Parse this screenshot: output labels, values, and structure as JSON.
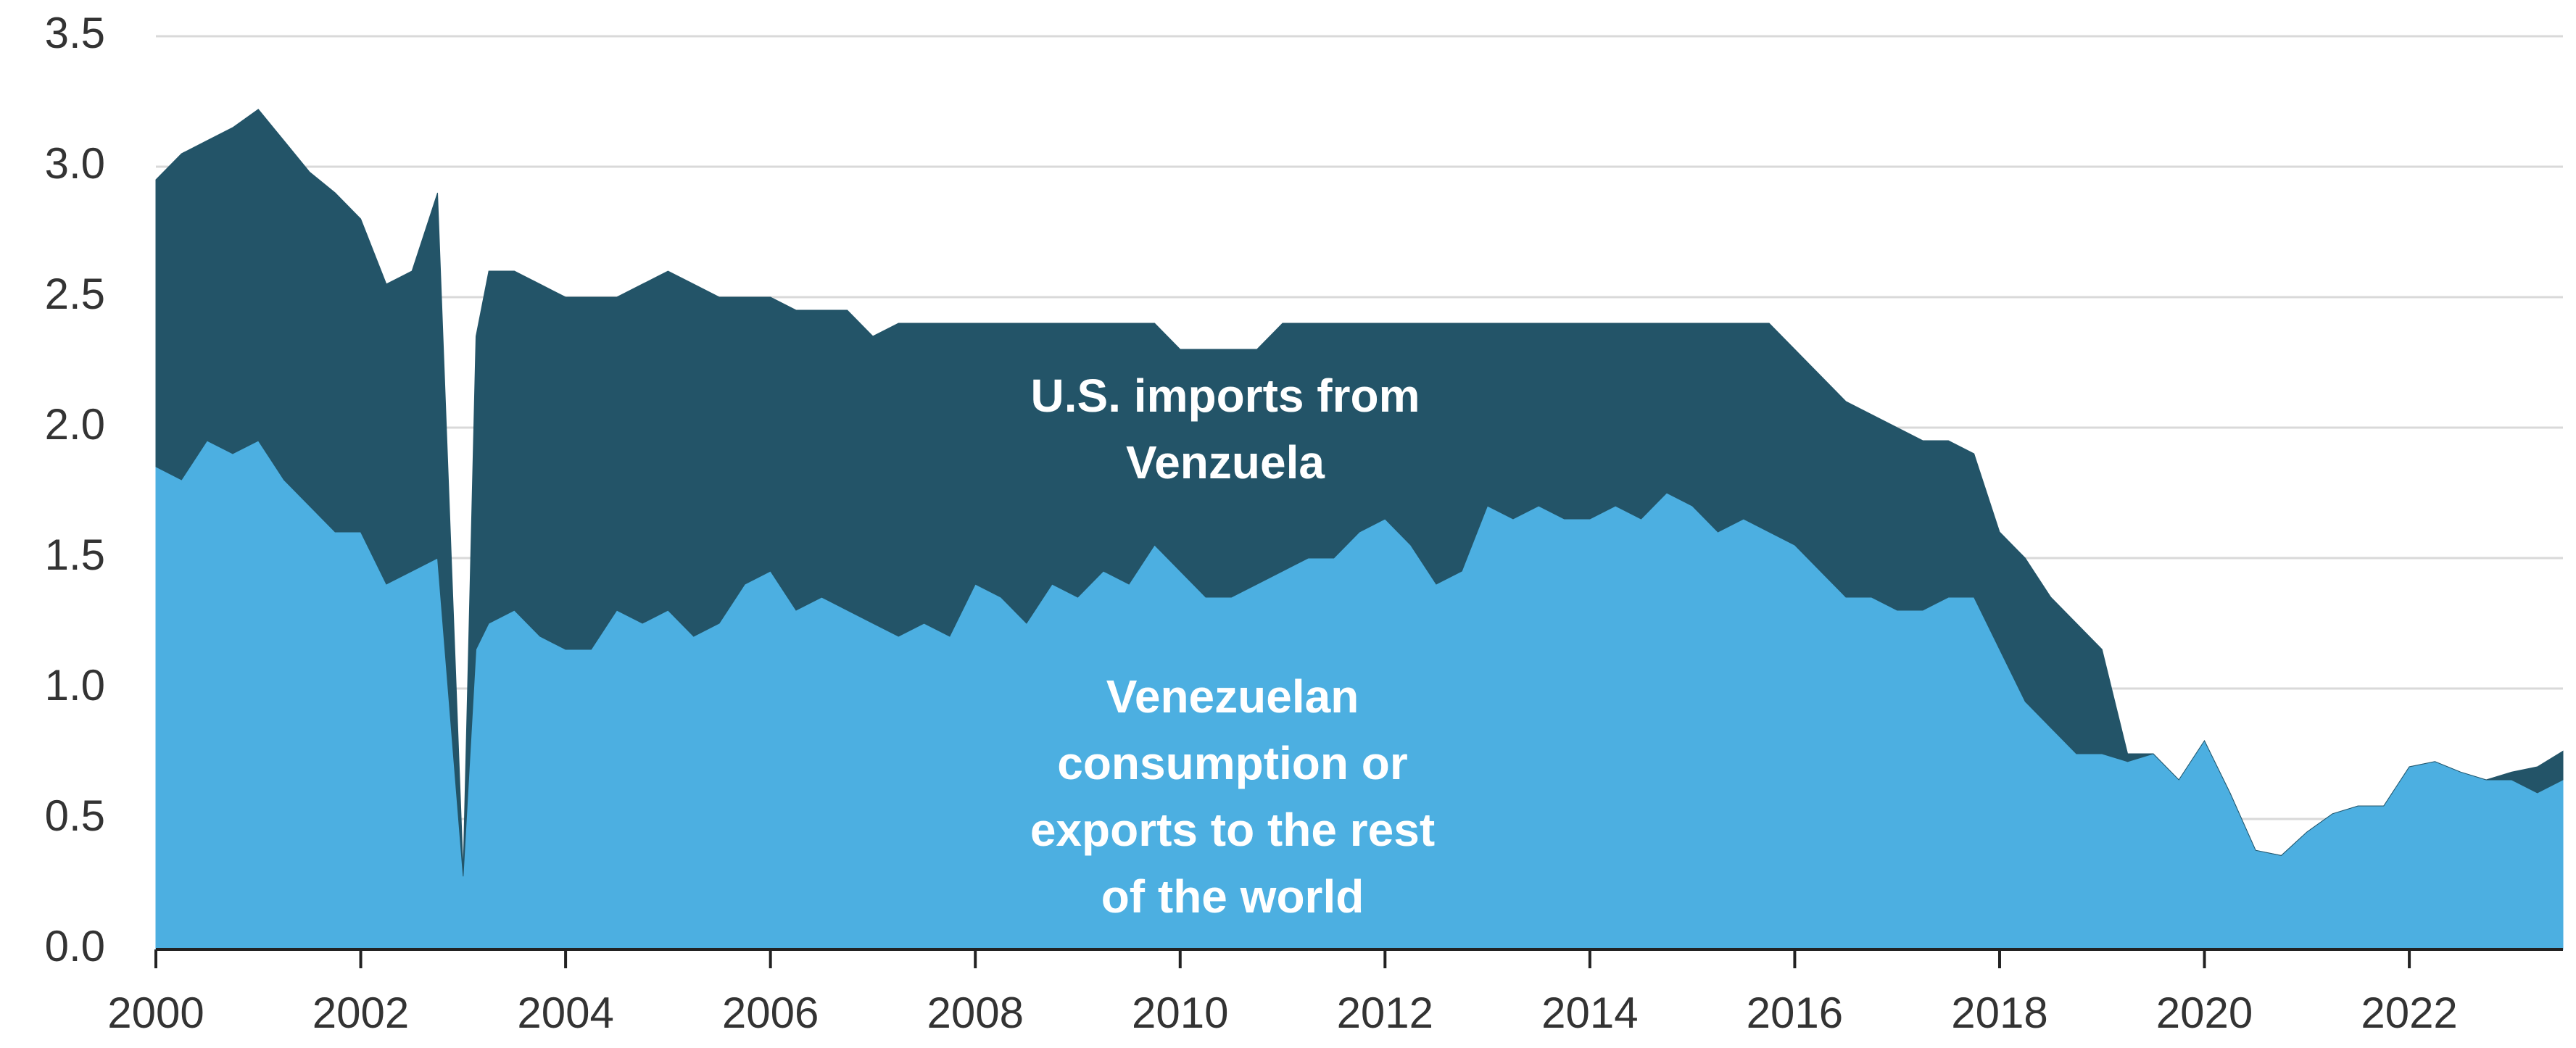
{
  "chart_data": {
    "type": "stacked_area",
    "x": [
      2000,
      2000.25,
      2000.5,
      2000.75,
      2001,
      2001.25,
      2001.5,
      2001.75,
      2002,
      2002.25,
      2002.5,
      2002.75,
      2003,
      2003.125,
      2003.25,
      2003.5,
      2003.75,
      2004,
      2004.25,
      2004.5,
      2004.75,
      2005,
      2005.25,
      2005.5,
      2005.75,
      2006,
      2006.25,
      2006.5,
      2006.75,
      2007,
      2007.25,
      2007.5,
      2007.75,
      2008,
      2008.25,
      2008.5,
      2008.75,
      2009,
      2009.25,
      2009.5,
      2009.75,
      2010,
      2010.25,
      2010.5,
      2010.75,
      2011,
      2011.25,
      2011.5,
      2011.75,
      2012,
      2012.25,
      2012.5,
      2012.75,
      2013,
      2013.25,
      2013.5,
      2013.75,
      2014,
      2014.25,
      2014.5,
      2014.75,
      2015,
      2015.25,
      2015.5,
      2015.75,
      2016,
      2016.25,
      2016.5,
      2016.75,
      2017,
      2017.25,
      2017.5,
      2017.75,
      2018,
      2018.25,
      2018.5,
      2018.75,
      2019,
      2019.25,
      2019.5,
      2019.75,
      2020,
      2020.25,
      2020.5,
      2020.75,
      2021,
      2021.25,
      2021.5,
      2021.75,
      2022,
      2022.25,
      2022.5,
      2022.75,
      2023,
      2023.25,
      2023.5
    ],
    "series": [
      {
        "name": "Venezuelan consumption or exports to the rest of the world",
        "color": "#4cafe1",
        "values": [
          1.85,
          1.8,
          1.95,
          1.9,
          1.95,
          1.8,
          1.7,
          1.6,
          1.6,
          1.4,
          1.45,
          1.5,
          0.28,
          1.15,
          1.25,
          1.3,
          1.2,
          1.15,
          1.15,
          1.3,
          1.25,
          1.3,
          1.2,
          1.25,
          1.4,
          1.45,
          1.3,
          1.35,
          1.3,
          1.25,
          1.2,
          1.25,
          1.2,
          1.4,
          1.35,
          1.25,
          1.4,
          1.35,
          1.45,
          1.4,
          1.55,
          1.45,
          1.35,
          1.35,
          1.4,
          1.45,
          1.5,
          1.5,
          1.6,
          1.65,
          1.55,
          1.4,
          1.45,
          1.7,
          1.65,
          1.7,
          1.65,
          1.65,
          1.7,
          1.65,
          1.75,
          1.7,
          1.6,
          1.65,
          1.6,
          1.55,
          1.45,
          1.35,
          1.35,
          1.3,
          1.3,
          1.35,
          1.35,
          1.15,
          0.95,
          0.85,
          0.75,
          0.75,
          0.72,
          0.75,
          0.65,
          0.8,
          0.6,
          0.38,
          0.36,
          0.45,
          0.52,
          0.55,
          0.55,
          0.7,
          0.72,
          0.68,
          0.65,
          0.65,
          0.6,
          0.65
        ]
      },
      {
        "name": "U.S. imports from Venzuela",
        "color": "#235468",
        "values": [
          1.1,
          1.25,
          1.15,
          1.25,
          1.27,
          1.3,
          1.28,
          1.3,
          1.2,
          1.15,
          1.15,
          1.4,
          0.02,
          1.2,
          1.35,
          1.3,
          1.35,
          1.35,
          1.35,
          1.2,
          1.3,
          1.3,
          1.35,
          1.25,
          1.1,
          1.05,
          1.15,
          1.1,
          1.15,
          1.1,
          1.2,
          1.15,
          1.2,
          1.0,
          1.05,
          1.15,
          1.0,
          1.05,
          0.95,
          1.0,
          0.85,
          0.85,
          0.95,
          0.95,
          0.9,
          0.95,
          0.9,
          0.9,
          0.8,
          0.75,
          0.85,
          1.0,
          0.95,
          0.7,
          0.75,
          0.7,
          0.75,
          0.75,
          0.7,
          0.75,
          0.65,
          0.7,
          0.8,
          0.75,
          0.8,
          0.75,
          0.75,
          0.75,
          0.7,
          0.7,
          0.65,
          0.6,
          0.55,
          0.45,
          0.55,
          0.5,
          0.5,
          0.4,
          0.03,
          0,
          0,
          0,
          0,
          0,
          0,
          0,
          0,
          0,
          0,
          0,
          0,
          0,
          0,
          0.03,
          0.1,
          0.11
        ]
      }
    ],
    "xlim": [
      2000,
      2023.5
    ],
    "xticks": [
      2000,
      2002,
      2004,
      2006,
      2008,
      2010,
      2012,
      2014,
      2016,
      2018,
      2020,
      2022
    ],
    "ylim": [
      0,
      3.5
    ],
    "yticks": [
      {
        "value": 0,
        "label": "0.0"
      },
      0.5,
      {
        "value": 1,
        "label": "1.0"
      },
      1.5,
      {
        "value": 2,
        "label": "2.0"
      },
      2.5,
      {
        "value": 3,
        "label": "3.0"
      },
      3.5
    ],
    "grid": true
  }
}
